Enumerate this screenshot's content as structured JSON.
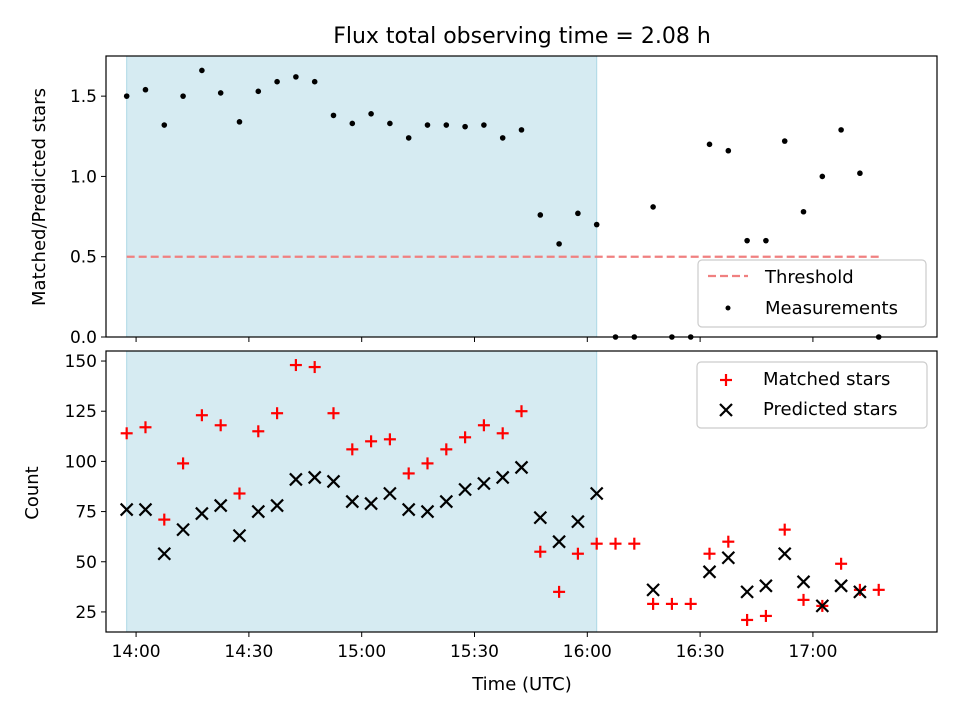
{
  "chart_data": {
    "title": "Flux total observing time = 2.08 h",
    "xlabel": "Time (UTC)",
    "x_ticks": [
      "14:00",
      "14:30",
      "15:00",
      "15:30",
      "16:00",
      "16:30",
      "17:00"
    ],
    "x_range_min": [
      832,
      1053
    ],
    "x_tick_min": [
      840,
      870,
      900,
      930,
      960,
      990,
      1020
    ],
    "observing_window_min": [
      837.5,
      962.5
    ],
    "shade_color": "#add8e6",
    "top": {
      "type": "scatter",
      "ylabel": "Matched/Predicted stars",
      "ylim": [
        0,
        1.75
      ],
      "y_ticks": [
        "0.0",
        "0.5",
        "1.0",
        "1.5"
      ],
      "threshold": 0.5,
      "threshold_color": "#f08080",
      "legend": [
        "Threshold",
        "Measurements"
      ],
      "x_min": [
        837.5,
        842.5,
        847.5,
        852.5,
        857.5,
        862.5,
        867.5,
        872.5,
        877.5,
        882.5,
        887.5,
        892.5,
        897.5,
        902.5,
        907.5,
        912.5,
        917.5,
        922.5,
        927.5,
        932.5,
        937.5,
        942.5,
        947.5,
        952.5,
        957.5,
        962.5,
        967.5,
        972.5,
        977.5,
        982.5,
        987.5,
        992.5,
        997.5,
        1002.5,
        1007.5,
        1012.5,
        1017.5,
        1022.5,
        1027.5,
        1032.5,
        1037.5
      ],
      "ratio": [
        1.5,
        1.54,
        1.32,
        1.5,
        1.66,
        1.52,
        1.34,
        1.53,
        1.59,
        1.62,
        1.59,
        1.38,
        1.33,
        1.39,
        1.33,
        1.24,
        1.32,
        1.32,
        1.31,
        1.32,
        1.24,
        1.29,
        0.76,
        0.58,
        0.77,
        0.7,
        0.0,
        0.0,
        0.81,
        0.0,
        0.0,
        1.2,
        1.16,
        0.6,
        0.6,
        1.22,
        0.78,
        1.0,
        1.29,
        1.02,
        0.0
      ]
    },
    "bottom": {
      "type": "scatter",
      "ylabel": "Count",
      "ylim": [
        15,
        155
      ],
      "y_ticks": [
        25,
        50,
        75,
        100,
        125,
        150
      ],
      "legend": [
        "Matched stars",
        "Predicted stars"
      ],
      "series": [
        {
          "name": "Matched stars",
          "color": "#ff0000",
          "x_min": [
            837.5,
            842.5,
            847.5,
            852.5,
            857.5,
            862.5,
            867.5,
            872.5,
            877.5,
            882.5,
            887.5,
            892.5,
            897.5,
            902.5,
            907.5,
            912.5,
            917.5,
            922.5,
            927.5,
            932.5,
            937.5,
            942.5,
            947.5,
            952.5,
            957.5,
            962.5,
            967.5,
            972.5,
            977.5,
            982.5,
            987.5,
            992.5,
            997.5,
            1002.5,
            1007.5,
            1012.5,
            1017.5,
            1022.5,
            1027.5,
            1032.5,
            1037.5
          ],
          "values": [
            114,
            117,
            71,
            99,
            123,
            118,
            84,
            115,
            124,
            148,
            147,
            124,
            106,
            110,
            111,
            94,
            99,
            106,
            112,
            118,
            114,
            125,
            55,
            35,
            54,
            59,
            59,
            59,
            29,
            29,
            29,
            54,
            60,
            21,
            23,
            66,
            31,
            28,
            49,
            36,
            36
          ]
        },
        {
          "name": "Predicted stars",
          "color": "#000000",
          "x_min": [
            837.5,
            842.5,
            847.5,
            852.5,
            857.5,
            862.5,
            867.5,
            872.5,
            877.5,
            882.5,
            887.5,
            892.5,
            897.5,
            902.5,
            907.5,
            912.5,
            917.5,
            922.5,
            927.5,
            932.5,
            937.5,
            942.5,
            947.5,
            952.5,
            957.5,
            962.5,
            977.5,
            992.5,
            997.5,
            1002.5,
            1007.5,
            1012.5,
            1017.5,
            1022.5,
            1027.5,
            1032.5
          ],
          "values": [
            76,
            76,
            54,
            66,
            74,
            78,
            63,
            75,
            78,
            91,
            92,
            90,
            80,
            79,
            84,
            76,
            75,
            80,
            86,
            89,
            92,
            97,
            72,
            60,
            70,
            84,
            36,
            45,
            52,
            35,
            38,
            54,
            40,
            28,
            38,
            35
          ]
        }
      ]
    }
  }
}
